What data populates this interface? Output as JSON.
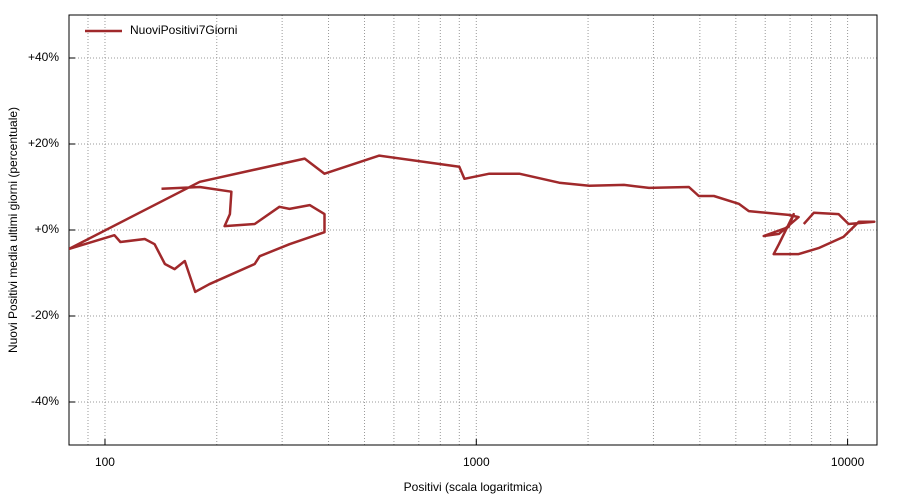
{
  "chart_data": {
    "type": "line",
    "x_label": "Positivi (scala logaritmica)",
    "y_label": "Nuovi Positivi media ultimi giorni (percentuale)",
    "xscale": "log",
    "xlim": [
      80,
      12000
    ],
    "ylim": [
      -50,
      50
    ],
    "xticks": [
      100,
      1000,
      10000
    ],
    "yticks": [
      {
        "value": 40,
        "label": "+40%"
      },
      {
        "value": 20,
        "label": "+20%"
      },
      {
        "value": 0,
        "label": "+0%"
      },
      {
        "value": -20,
        "label": "-20%"
      },
      {
        "value": -40,
        "label": "-40%"
      }
    ],
    "grid": true,
    "legend": "top-left",
    "series": [
      {
        "name": "NuoviPositivi7Giorni",
        "color": "#a0292b",
        "x": [
          142,
          180,
          219,
          217,
          210,
          253,
          295,
          314,
          356,
          390,
          390,
          314,
          261,
          253,
          191,
          175,
          164,
          154,
          145,
          136,
          128,
          110,
          106,
          80,
          180,
          345,
          390,
          548,
          900,
          929,
          1084,
          1306,
          1672,
          2014,
          2500,
          2919,
          3738,
          3975,
          4364,
          5093,
          5420,
          6937,
          7379,
          6531,
          5942,
          6937,
          7161,
          6531,
          6324,
          7379,
          8356,
          9750,
          10720,
          11800,
          10060,
          9460,
          8110,
          7620
        ],
        "values": [
          9.6,
          10.0,
          8.9,
          3.7,
          0.9,
          1.4,
          5.4,
          4.9,
          5.8,
          3.7,
          -0.5,
          -3.3,
          -6.1,
          -7.9,
          -12.6,
          -14.4,
          -7.2,
          -9.1,
          -7.9,
          -3.3,
          -2.1,
          -2.8,
          -1.2,
          -4.4,
          11.2,
          16.6,
          13.1,
          17.3,
          14.7,
          11.9,
          13.1,
          13.1,
          11.0,
          10.3,
          10.5,
          9.8,
          10.0,
          7.9,
          7.9,
          6.1,
          4.4,
          3.5,
          3.0,
          -0.9,
          -1.4,
          0.7,
          3.7,
          -3.3,
          -5.6,
          -5.6,
          -4.2,
          -1.6,
          1.9,
          1.9,
          1.4,
          3.7,
          4.0,
          1.4
        ]
      }
    ]
  }
}
